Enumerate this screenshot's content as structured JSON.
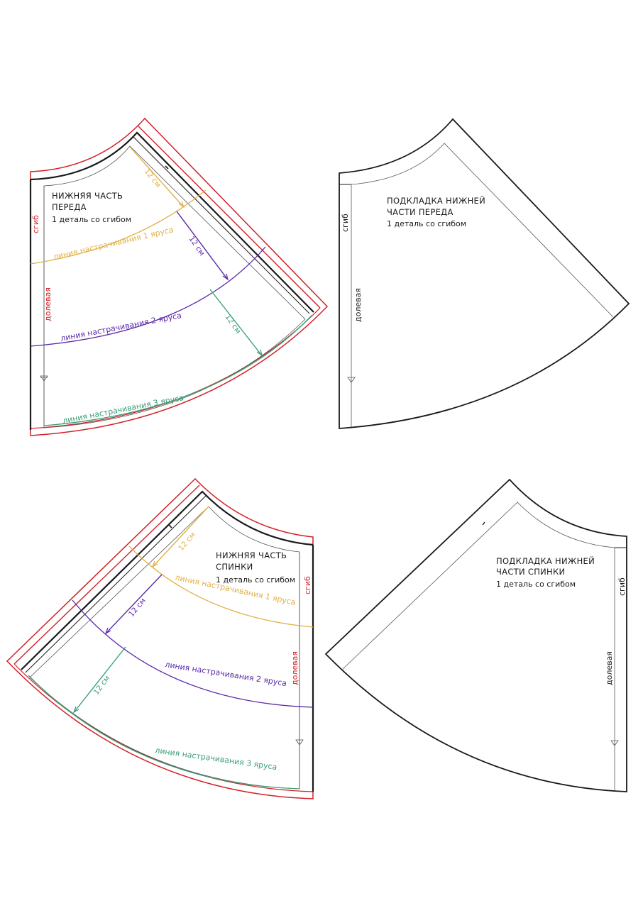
{
  "colors": {
    "outline": "#1a1a1a",
    "seam_allowance": "#d21f26",
    "tier1": "#e0b14a",
    "tier2": "#5b2aa8",
    "tier3": "#3a9e78",
    "grainline": "#555555"
  },
  "front": {
    "title_line1": "НИЖНЯЯ ЧАСТЬ",
    "title_line2": "ПЕРЕДА",
    "subtitle": "1 деталь со сгибом",
    "fold_label": "сгиб",
    "grain_label": "долевая",
    "tier1_label": "линия настрачивания 1 яруса",
    "tier2_label": "линия настрачивания 2 яруса",
    "tier3_label": "линия настрачивания 3 яруса",
    "measure1": "12 см",
    "measure2": "12 см",
    "measure3": "12 см"
  },
  "front_lining": {
    "title_line1": "ПОДКЛАДКА НИЖНЕЙ",
    "title_line2": "ЧАСТИ ПЕРЕДА",
    "subtitle": "1 деталь со сгибом",
    "fold_label": "сгиб",
    "grain_label": "долевая"
  },
  "back": {
    "title_line1": "НИЖНЯЯ ЧАСТЬ",
    "title_line2": "СПИНКИ",
    "subtitle": "1 деталь со сгибом",
    "fold_label": "сгиб",
    "grain_label": "долевая",
    "tier1_label": "линия настрачивания 1 яруса",
    "tier2_label": "линия настрачивания 2 яруса",
    "tier3_label": "линия настрачивания 3 яруса",
    "measure1": "12 см",
    "measure2": "12 см",
    "measure3": "12 см"
  },
  "back_lining": {
    "title_line1": "ПОДКЛАДКА НИЖНЕЙ",
    "title_line2": "ЧАСТИ СПИНКИ",
    "subtitle": "1 деталь со сгибом",
    "fold_label": "сгиб",
    "grain_label": "долевая"
  }
}
